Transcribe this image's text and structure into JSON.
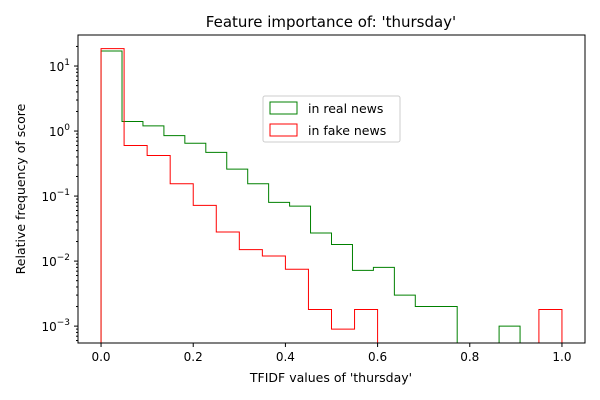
{
  "chart_data": {
    "type": "histogram",
    "title": "Feature importance of: 'thursday'",
    "xlabel": "TFIDF values of 'thursday'",
    "ylabel": "Relative frequency of score",
    "y_scale": "log",
    "xlim": [
      -0.05,
      1.05
    ],
    "ylim": [
      0.00055,
      30
    ],
    "x_ticks": [
      0.0,
      0.2,
      0.4,
      0.6,
      0.8,
      1.0
    ],
    "x_tick_labels": [
      "0.0",
      "0.2",
      "0.4",
      "0.6",
      "0.8",
      "1.0"
    ],
    "y_ticks": [
      0.001,
      0.01,
      0.1,
      1,
      10
    ],
    "y_tick_labels": [
      {
        "base": "10",
        "exp": "−3"
      },
      {
        "base": "10",
        "exp": "−2"
      },
      {
        "base": "10",
        "exp": "−1"
      },
      {
        "base": "10",
        "exp": "0"
      },
      {
        "base": "10",
        "exp": "1"
      }
    ],
    "legend_position": "upper-center",
    "series": [
      {
        "name": "in real news",
        "color": "#008000",
        "bin_edges": [
          0.0,
          0.0455,
          0.0909,
          0.1364,
          0.1818,
          0.2273,
          0.2727,
          0.3182,
          0.3636,
          0.4091,
          0.4545,
          0.5,
          0.5455,
          0.5909,
          0.6364,
          0.6818,
          0.7273,
          0.7727,
          0.8182,
          0.8636,
          0.9091,
          0.9545,
          1.0
        ],
        "values": [
          17,
          1.4,
          1.2,
          0.85,
          0.65,
          0.47,
          0.26,
          0.155,
          0.08,
          0.07,
          0.027,
          0.018,
          0.0072,
          0.008,
          0.003,
          0.002,
          0.002,
          0,
          0,
          0.001,
          0,
          0
        ]
      },
      {
        "name": "in fake news",
        "color": "#ff0000",
        "bin_edges": [
          0.0,
          0.05,
          0.1,
          0.15,
          0.2,
          0.25,
          0.3,
          0.35,
          0.4,
          0.45,
          0.5,
          0.55,
          0.6,
          0.65,
          0.7,
          0.75,
          0.8,
          0.85,
          0.9,
          0.95,
          1.0
        ],
        "values": [
          18.5,
          0.6,
          0.42,
          0.155,
          0.072,
          0.028,
          0.015,
          0.012,
          0.0075,
          0.0018,
          0.0009,
          0.0018,
          0,
          0,
          0,
          0,
          0,
          0,
          0,
          0.0018
        ]
      }
    ]
  }
}
